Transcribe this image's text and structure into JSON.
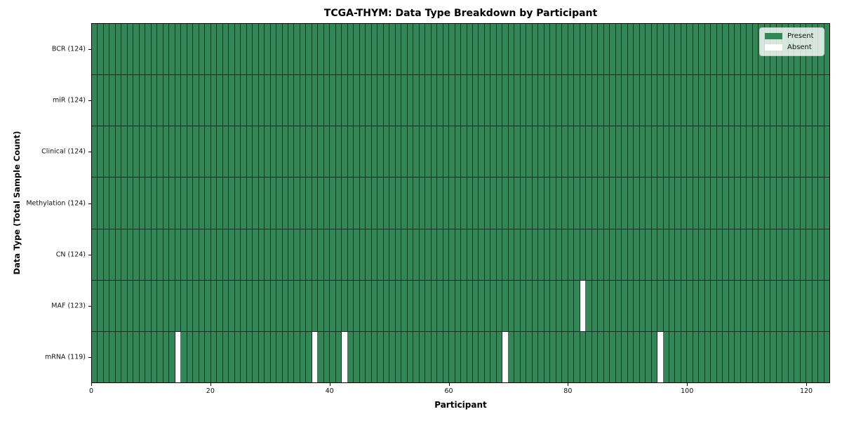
{
  "colors": {
    "present": "#328756",
    "absent": "#ffffff"
  },
  "legend": {
    "present_label": "Present",
    "absent_label": "Absent"
  },
  "chart_data": {
    "type": "heatmap",
    "title": "TCGA-THYM: Data Type Breakdown by Participant",
    "xlabel": "Participant",
    "ylabel": "Data Type (Total Sample Count)",
    "xlim": [
      0,
      124
    ],
    "x_ticks": [
      0,
      20,
      40,
      60,
      80,
      100,
      120
    ],
    "n_participants": 124,
    "grid": true,
    "legend_position": "upper right",
    "legend_labels": [
      "Present",
      "Absent"
    ],
    "rows": [
      {
        "label": "BCR (124)",
        "data_type": "BCR",
        "present_count": 124,
        "absent_participants": []
      },
      {
        "label": "miR (124)",
        "data_type": "miR",
        "present_count": 124,
        "absent_participants": []
      },
      {
        "label": "Clinical (124)",
        "data_type": "Clinical",
        "present_count": 124,
        "absent_participants": []
      },
      {
        "label": "Methylation (124)",
        "data_type": "Methylation",
        "present_count": 124,
        "absent_participants": []
      },
      {
        "label": "CN (124)",
        "data_type": "CN",
        "present_count": 124,
        "absent_participants": []
      },
      {
        "label": "MAF (123)",
        "data_type": "MAF",
        "present_count": 123,
        "absent_participants": [
          82
        ]
      },
      {
        "label": "mRNA (119)",
        "data_type": "mRNA",
        "present_count": 119,
        "absent_participants": [
          14,
          37,
          42,
          69,
          95
        ]
      }
    ]
  }
}
